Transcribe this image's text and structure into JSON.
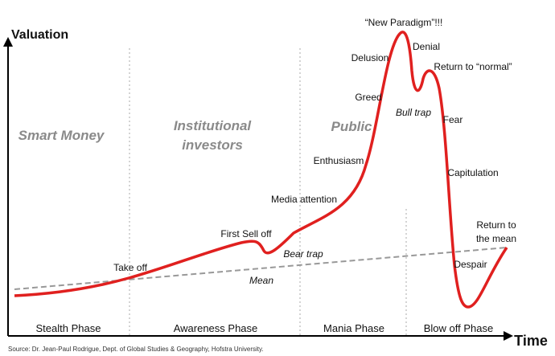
{
  "axes": {
    "y_label": "Valuation",
    "x_label": "Time"
  },
  "groups": {
    "smart_money": "Smart Money",
    "institutional": [
      "Institutional",
      "investors"
    ],
    "public": "Public"
  },
  "phases": [
    "Stealth Phase",
    "Awareness Phase",
    "Mania Phase",
    "Blow off Phase"
  ],
  "annotations": {
    "take_off": "Take off",
    "first_sell_off": "First Sell off",
    "bear_trap": "Bear trap",
    "mean": "Mean",
    "media_attention": "Media attention",
    "enthusiasm": "Enthusiasm",
    "greed": "Greed",
    "delusion": "Delusion",
    "new_paradigm": "“New Paradigm”!!!",
    "denial": "Denial",
    "return_to_normal": "Return to “normal”",
    "bull_trap": "Bull trap",
    "fear": "Fear",
    "capitulation": "Capitulation",
    "return_to_mean": [
      "Return to",
      "the mean"
    ],
    "despair": "Despair"
  },
  "source": "Source: Dr. Jean-Paul Rodrigue, Dept. of Global Studies & Geography, Hofstra University."
}
